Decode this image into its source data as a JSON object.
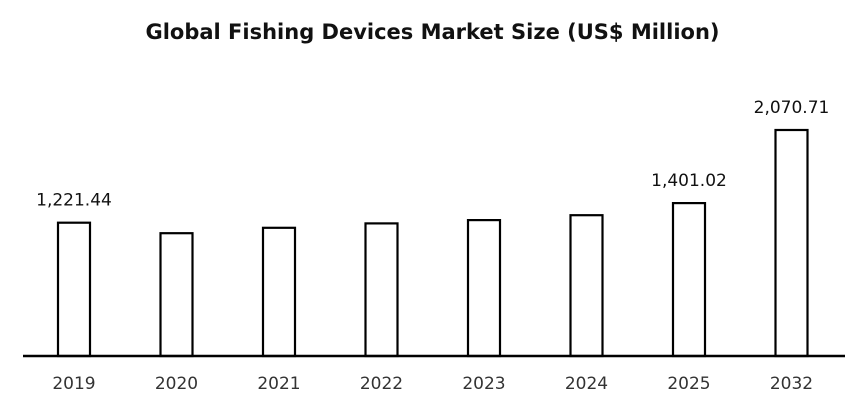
{
  "chart_data": {
    "type": "bar",
    "title": "Global Fishing Devices Market Size (US$ Million)",
    "xlabel": "",
    "ylabel": "",
    "categories": [
      "2019",
      "2020",
      "2021",
      "2022",
      "2023",
      "2024",
      "2025",
      "2032"
    ],
    "values": [
      1221.44,
      1125,
      1175,
      1215,
      1245,
      1290,
      1401.02,
      2070.71
    ],
    "data_labels": [
      "1,221.44",
      "",
      "",
      "",
      "",
      "",
      "1,401.02",
      "2,070.71"
    ],
    "ylim": [
      0,
      2300
    ],
    "grid": false,
    "legend": "none",
    "bar_fill": "#ffffff",
    "bar_stroke": "#000000",
    "axis_color": "#000000"
  }
}
